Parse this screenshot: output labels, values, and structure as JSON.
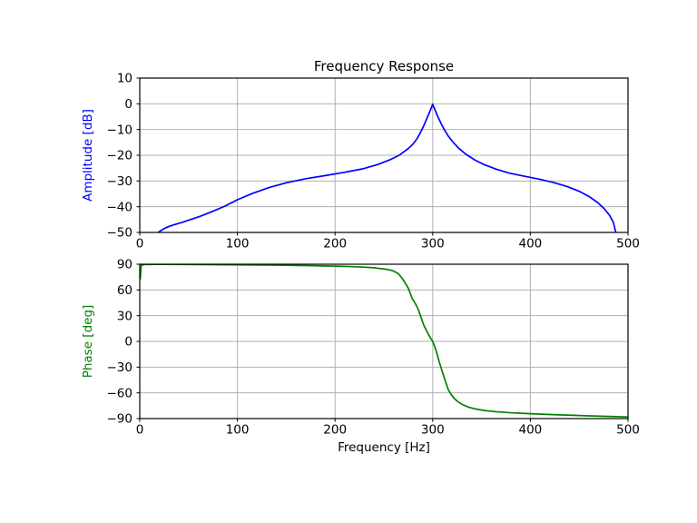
{
  "figure": {
    "background": "#ffffff",
    "grid_color": "#b0b0b0",
    "spine_color": "#000000",
    "tick_label_color": "#000000"
  },
  "chart": {
    "title": "Frequency Response",
    "xlabel": "Frequency [Hz]",
    "amplitude_ylabel": "Amplitude [dB]",
    "phase_ylabel": "Phase [deg]"
  },
  "chart_data": {
    "type": "line",
    "title": "Frequency Response",
    "xlabel": "Frequency [Hz]",
    "xlim": [
      0,
      500
    ],
    "xticks": [
      0,
      100,
      200,
      300,
      400,
      500
    ],
    "grid": true,
    "legend": false,
    "subplots": [
      {
        "name": "amplitude",
        "ylabel": "Amplitude [dB]",
        "ylim": [
          -50,
          10
        ],
        "yticks": [
          10,
          0,
          -10,
          -20,
          -30,
          -40,
          -50
        ],
        "color": "#0000ff",
        "series": [
          {
            "name": "amplitude_db",
            "points": [
              [
                19,
                -50
              ],
              [
                22,
                -49.2
              ],
              [
                26,
                -48.3
              ],
              [
                31,
                -47.5
              ],
              [
                37,
                -46.8
              ],
              [
                44,
                -46.0
              ],
              [
                52,
                -45.0
              ],
              [
                62,
                -43.7
              ],
              [
                74,
                -41.9
              ],
              [
                87,
                -39.8
              ],
              [
                100,
                -37.3
              ],
              [
                115,
                -34.9
              ],
              [
                132,
                -32.6
              ],
              [
                150,
                -30.7
              ],
              [
                170,
                -29.1
              ],
              [
                190,
                -27.9
              ],
              [
                210,
                -26.6
              ],
              [
                228,
                -25.3
              ],
              [
                243,
                -23.7
              ],
              [
                256,
                -21.8
              ],
              [
                266,
                -19.9
              ],
              [
                274,
                -17.7
              ],
              [
                280,
                -15.6
              ],
              [
                284,
                -13.5
              ],
              [
                287,
                -11.5
              ],
              [
                290,
                -9.2
              ],
              [
                293,
                -6.6
              ],
              [
                296,
                -3.9
              ],
              [
                298,
                -2.1
              ],
              [
                299.5,
                -0.6
              ],
              [
                300,
                -0.15
              ],
              [
                301,
                -1.2
              ],
              [
                302.5,
                -2.5
              ],
              [
                304,
                -3.9
              ],
              [
                306,
                -5.6
              ],
              [
                309,
                -8.0
              ],
              [
                312,
                -10.1
              ],
              [
                316,
                -12.6
              ],
              [
                321,
                -15.0
              ],
              [
                327,
                -17.4
              ],
              [
                334,
                -19.6
              ],
              [
                343,
                -21.8
              ],
              [
                353,
                -23.7
              ],
              [
                365,
                -25.4
              ],
              [
                378,
                -26.9
              ],
              [
                392,
                -28.0
              ],
              [
                408,
                -29.2
              ],
              [
                424,
                -30.6
              ],
              [
                438,
                -32.2
              ],
              [
                450,
                -34.0
              ],
              [
                460,
                -36.0
              ],
              [
                469,
                -38.4
              ],
              [
                476,
                -40.9
              ],
              [
                481,
                -43.3
              ],
              [
                485,
                -46.1
              ],
              [
                487.5,
                -50
              ]
            ]
          }
        ]
      },
      {
        "name": "phase",
        "ylabel": "Phase [deg]",
        "ylim": [
          -90,
          90
        ],
        "yticks": [
          90,
          60,
          30,
          0,
          -30,
          -60,
          -90
        ],
        "color": "#008000",
        "series": [
          {
            "name": "phase_deg",
            "points": [
              [
                0.5,
                73
              ],
              [
                1.5,
                88.8
              ],
              [
                5,
                89.7
              ],
              [
                20,
                89.8
              ],
              [
                50,
                89.7
              ],
              [
                80,
                89.5
              ],
              [
                110,
                89.2
              ],
              [
                140,
                88.9
              ],
              [
                170,
                88.4
              ],
              [
                195,
                87.9
              ],
              [
                215,
                87.3
              ],
              [
                230,
                86.6
              ],
              [
                242,
                85.6
              ],
              [
                252,
                84.2
              ],
              [
                259,
                82.5
              ],
              [
                264,
                79.5
              ],
              [
                266,
                77.5
              ],
              [
                270,
                71.5
              ],
              [
                275,
                62
              ],
              [
                279,
                50
              ],
              [
                282,
                44.5
              ],
              [
                285,
                38
              ],
              [
                288,
                28
              ],
              [
                291,
                18.5
              ],
              [
                295,
                9.5
              ],
              [
                298,
                3.5
              ],
              [
                300,
                0
              ],
              [
                302,
                -6
              ],
              [
                304.5,
                -15
              ],
              [
                307,
                -25
              ],
              [
                310,
                -36
              ],
              [
                313,
                -46.5
              ],
              [
                316,
                -56.5
              ],
              [
                319,
                -62
              ],
              [
                322,
                -66.5
              ],
              [
                326,
                -70.5
              ],
              [
                331,
                -74
              ],
              [
                337,
                -76.8
              ],
              [
                344,
                -78.8
              ],
              [
                353,
                -80.6
              ],
              [
                365,
                -82
              ],
              [
                380,
                -83.2
              ],
              [
                400,
                -84.3
              ],
              [
                420,
                -85.2
              ],
              [
                440,
                -86
              ],
              [
                460,
                -86.8
              ],
              [
                480,
                -87.5
              ],
              [
                500,
                -88.1
              ]
            ]
          }
        ]
      }
    ]
  }
}
